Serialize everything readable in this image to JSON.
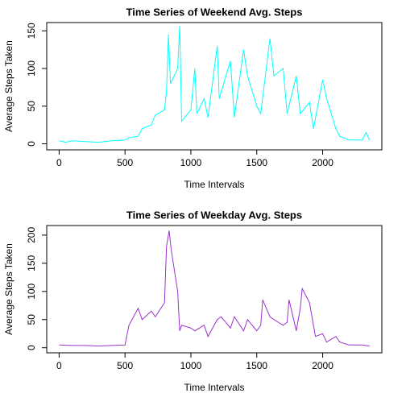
{
  "chart_data": [
    {
      "type": "line",
      "title": "Time Series of Weekend Avg. Steps",
      "xlabel": "Time Intervals",
      "ylabel": "Average Steps Taken",
      "color": "#00ffff",
      "x": [
        0,
        50,
        100,
        200,
        300,
        400,
        500,
        530,
        600,
        630,
        700,
        730,
        800,
        815,
        830,
        845,
        900,
        915,
        930,
        1000,
        1030,
        1045,
        1100,
        1130,
        1200,
        1215,
        1300,
        1330,
        1400,
        1430,
        1500,
        1530,
        1600,
        1630,
        1700,
        1730,
        1800,
        1830,
        1900,
        1930,
        2000,
        2030,
        2100,
        2130,
        2200,
        2300,
        2330,
        2355
      ],
      "values": [
        4,
        2,
        4,
        3,
        2,
        4,
        5,
        8,
        10,
        20,
        25,
        38,
        45,
        70,
        145,
        80,
        100,
        157,
        30,
        45,
        100,
        40,
        60,
        35,
        130,
        60,
        110,
        35,
        125,
        90,
        50,
        40,
        140,
        90,
        100,
        40,
        90,
        40,
        55,
        20,
        85,
        60,
        20,
        10,
        5,
        5,
        15,
        5
      ],
      "xlim": [
        -94,
        2449
      ],
      "ylim": [
        -8,
        161
      ],
      "xticks": [
        0,
        500,
        1000,
        1500,
        2000
      ],
      "yticks": [
        0,
        50,
        100,
        150
      ]
    },
    {
      "type": "line",
      "title": "Time Series of Weekday Avg. Steps",
      "xlabel": "Time Intervals",
      "ylabel": "Average Steps Taken",
      "color": "#9a32cd",
      "x": [
        0,
        100,
        200,
        300,
        400,
        500,
        530,
        600,
        630,
        700,
        730,
        800,
        815,
        835,
        850,
        900,
        915,
        930,
        1000,
        1030,
        1100,
        1130,
        1200,
        1230,
        1300,
        1330,
        1400,
        1430,
        1500,
        1530,
        1545,
        1600,
        1630,
        1700,
        1730,
        1745,
        1800,
        1830,
        1845,
        1900,
        1930,
        1945,
        2000,
        2030,
        2100,
        2130,
        2200,
        2300,
        2355
      ],
      "values": [
        5,
        4,
        4,
        3,
        4,
        5,
        40,
        70,
        50,
        65,
        55,
        80,
        180,
        208,
        175,
        100,
        30,
        40,
        35,
        30,
        40,
        20,
        50,
        55,
        35,
        55,
        30,
        50,
        30,
        40,
        85,
        55,
        50,
        40,
        45,
        85,
        30,
        70,
        105,
        80,
        40,
        20,
        25,
        10,
        20,
        10,
        5,
        5,
        3
      ],
      "xlim": [
        -94,
        2449
      ],
      "ylim": [
        -9,
        217
      ],
      "xticks": [
        0,
        500,
        1000,
        1500,
        2000
      ],
      "yticks": [
        0,
        50,
        100,
        150,
        200
      ]
    }
  ]
}
